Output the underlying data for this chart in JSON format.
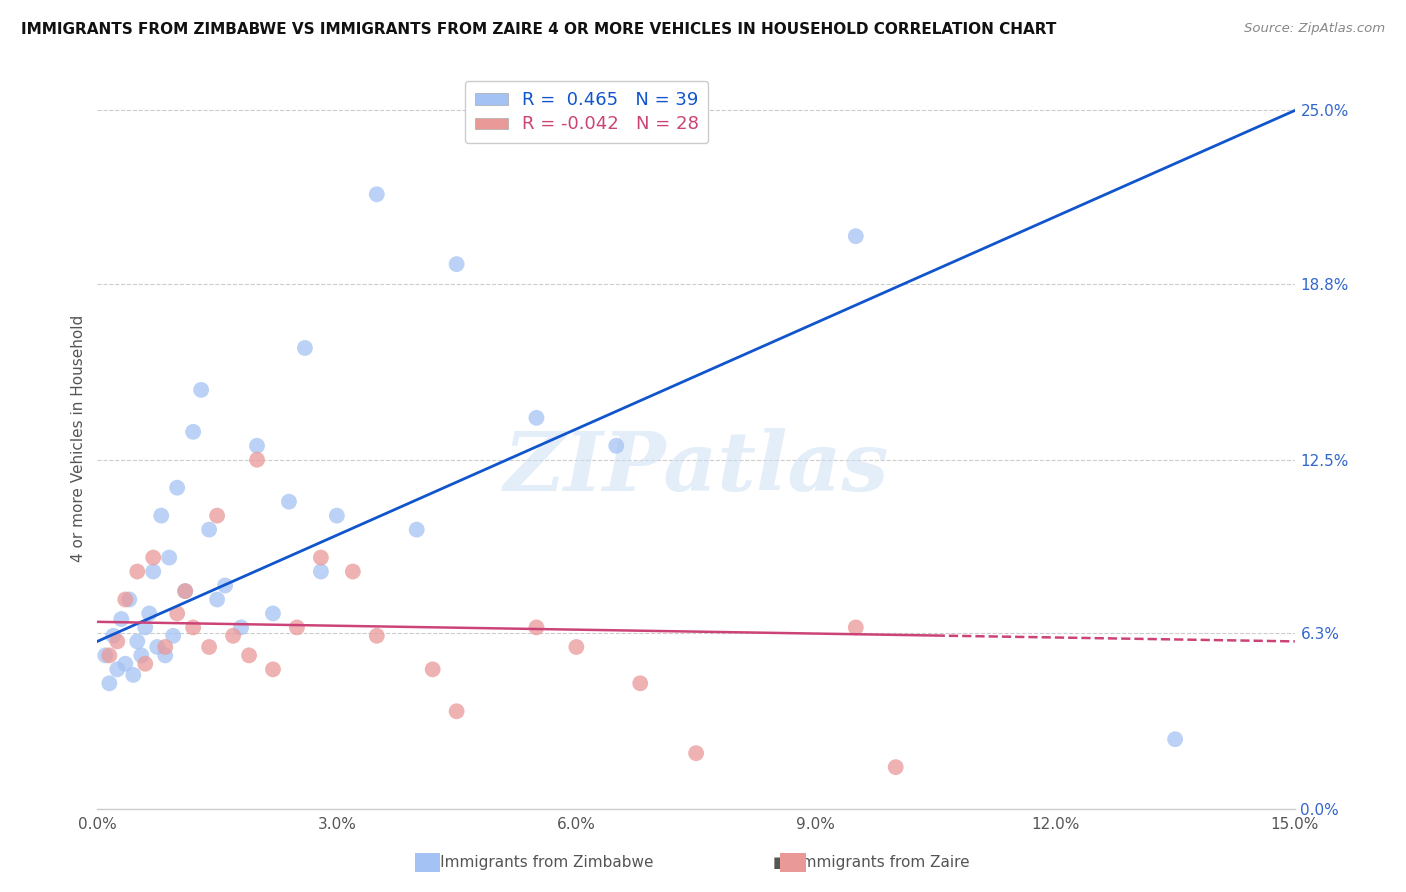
{
  "title": "IMMIGRANTS FROM ZIMBABWE VS IMMIGRANTS FROM ZAIRE 4 OR MORE VEHICLES IN HOUSEHOLD CORRELATION CHART",
  "source": "Source: ZipAtlas.com",
  "ylabel": "4 or more Vehicles in Household",
  "xlabel_vals": [
    0.0,
    3.0,
    6.0,
    9.0,
    12.0,
    15.0
  ],
  "ylabel_vals": [
    0.0,
    6.3,
    12.5,
    18.8,
    25.0
  ],
  "xlim": [
    0.0,
    15.0
  ],
  "ylim": [
    0.0,
    26.5
  ],
  "R_zimbabwe": 0.465,
  "N_zimbabwe": 39,
  "R_zaire": -0.042,
  "N_zaire": 28,
  "color_zimbabwe": "#a4c2f4",
  "color_zaire": "#ea9999",
  "line_color_zimbabwe": "#1155cc",
  "line_color_zaire": "#cc4477",
  "background_color": "#ffffff",
  "legend_zimbabwe": "Immigrants from Zimbabwe",
  "legend_zaire": "Immigrants from Zaire",
  "zimbabwe_x": [
    0.1,
    0.15,
    0.2,
    0.25,
    0.3,
    0.35,
    0.4,
    0.45,
    0.5,
    0.55,
    0.6,
    0.65,
    0.7,
    0.75,
    0.8,
    0.85,
    0.9,
    0.95,
    1.0,
    1.1,
    1.2,
    1.3,
    1.4,
    1.5,
    1.6,
    1.8,
    2.0,
    2.2,
    2.4,
    2.6,
    2.8,
    3.0,
    3.5,
    4.0,
    4.5,
    5.5,
    6.5,
    9.5,
    13.5
  ],
  "zimbabwe_y": [
    5.5,
    4.5,
    6.2,
    5.0,
    6.8,
    5.2,
    7.5,
    4.8,
    6.0,
    5.5,
    6.5,
    7.0,
    8.5,
    5.8,
    10.5,
    5.5,
    9.0,
    6.2,
    11.5,
    7.8,
    13.5,
    15.0,
    10.0,
    7.5,
    8.0,
    6.5,
    13.0,
    7.0,
    11.0,
    16.5,
    8.5,
    10.5,
    22.0,
    10.0,
    19.5,
    14.0,
    13.0,
    20.5,
    2.5
  ],
  "zaire_x": [
    0.15,
    0.25,
    0.35,
    0.5,
    0.6,
    0.7,
    0.85,
    1.0,
    1.1,
    1.2,
    1.4,
    1.5,
    1.7,
    1.9,
    2.0,
    2.2,
    2.5,
    2.8,
    3.2,
    3.5,
    4.2,
    4.5,
    5.5,
    6.0,
    6.8,
    7.5,
    9.5,
    10.0
  ],
  "zaire_y": [
    5.5,
    6.0,
    7.5,
    8.5,
    5.2,
    9.0,
    5.8,
    7.0,
    7.8,
    6.5,
    5.8,
    10.5,
    6.2,
    5.5,
    12.5,
    5.0,
    6.5,
    9.0,
    8.5,
    6.2,
    5.0,
    3.5,
    6.5,
    5.8,
    4.5,
    2.0,
    6.5,
    1.5
  ],
  "zim_line_x0": 0.0,
  "zim_line_y0": 6.0,
  "zim_line_x1": 15.0,
  "zim_line_y1": 25.0,
  "zaire_line_x0": 0.0,
  "zaire_line_y0": 6.7,
  "zaire_line_x1": 15.0,
  "zaire_line_y1": 6.0,
  "zaire_solid_end": 10.5
}
